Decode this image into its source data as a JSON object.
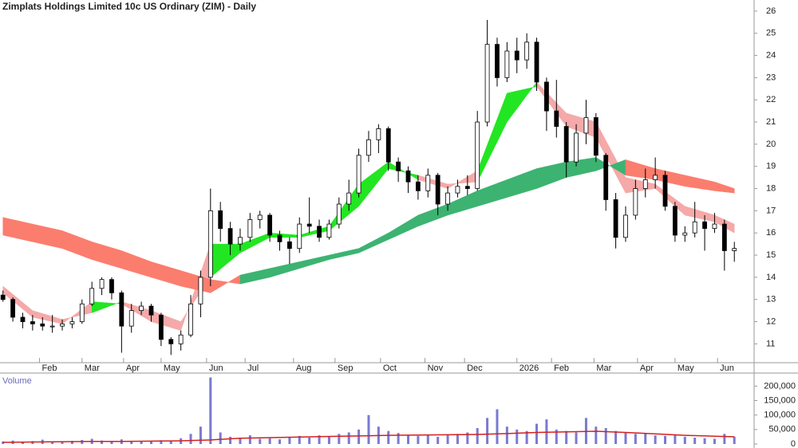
{
  "chart_data": {
    "type": "candlestick",
    "title": "Zimplats Holdings Limited 10c US Ordinary (ZIM) - Daily",
    "ylim": [
      10.15,
      26.5
    ],
    "yticks": [
      11,
      12,
      13,
      14,
      15,
      16,
      17,
      18,
      19,
      20,
      21,
      22,
      23,
      24,
      25,
      26
    ],
    "xlim": [
      -0.3,
      76
    ],
    "xticks": [
      {
        "value": 3.7,
        "label": "Feb"
      },
      {
        "value": 8,
        "label": "Mar"
      },
      {
        "value": 12.2,
        "label": "Apr"
      },
      {
        "value": 16,
        "label": "May"
      },
      {
        "value": 20.6,
        "label": "Jun"
      },
      {
        "value": 24.5,
        "label": "Jul"
      },
      {
        "value": 29.4,
        "label": "Aug"
      },
      {
        "value": 33.6,
        "label": "Sep"
      },
      {
        "value": 38.2,
        "label": "Oct"
      },
      {
        "value": 42.7,
        "label": "Nov"
      },
      {
        "value": 46.7,
        "label": "Dec"
      },
      {
        "value": 52,
        "label": "2026"
      },
      {
        "value": 55.5,
        "label": "Feb"
      },
      {
        "value": 59.8,
        "label": "Mar"
      },
      {
        "value": 64.2,
        "label": "Apr"
      },
      {
        "value": 68,
        "label": "May"
      },
      {
        "value": 72.3,
        "label": "Jun"
      }
    ],
    "ohlc": [
      [
        13.2,
        13.4,
        12.9,
        13.0
      ],
      [
        13.0,
        13.1,
        12.0,
        12.2
      ],
      [
        12.2,
        12.4,
        11.7,
        12.0
      ],
      [
        12.0,
        12.3,
        11.6,
        11.9
      ],
      [
        11.9,
        12.2,
        11.6,
        11.8
      ],
      [
        11.8,
        12.3,
        11.5,
        11.8
      ],
      [
        11.8,
        12.1,
        11.6,
        11.9
      ],
      [
        11.9,
        12.2,
        11.7,
        12.0
      ],
      [
        12.0,
        13.0,
        11.9,
        12.8
      ],
      [
        12.8,
        13.8,
        12.7,
        13.5
      ],
      [
        13.5,
        14.0,
        13.2,
        13.9
      ],
      [
        13.9,
        14.0,
        13.0,
        13.3
      ],
      [
        13.3,
        13.4,
        10.6,
        11.8
      ],
      [
        11.8,
        12.8,
        11.5,
        12.5
      ],
      [
        12.5,
        12.9,
        12.3,
        12.7
      ],
      [
        12.7,
        12.8,
        12.0,
        12.3
      ],
      [
        12.3,
        12.4,
        10.9,
        11.2
      ],
      [
        11.2,
        11.3,
        10.5,
        11.0
      ],
      [
        11.0,
        11.6,
        10.7,
        11.4
      ],
      [
        11.4,
        13.2,
        11.3,
        12.8
      ],
      [
        12.8,
        14.3,
        12.2,
        14.0
      ],
      [
        14.0,
        18.0,
        13.6,
        17.0
      ],
      [
        17.0,
        17.4,
        15.6,
        16.2
      ],
      [
        16.2,
        16.5,
        15.0,
        15.5
      ],
      [
        15.5,
        16.2,
        15.2,
        15.8
      ],
      [
        15.8,
        16.9,
        15.6,
        16.6
      ],
      [
        16.6,
        17.0,
        16.2,
        16.8
      ],
      [
        16.8,
        16.9,
        15.6,
        15.9
      ],
      [
        15.9,
        16.1,
        15.2,
        15.6
      ],
      [
        15.6,
        15.8,
        14.6,
        15.3
      ],
      [
        15.3,
        16.7,
        15.1,
        16.4
      ],
      [
        16.4,
        17.6,
        16.0,
        16.3
      ],
      [
        16.3,
        16.6,
        15.6,
        15.8
      ],
      [
        15.8,
        16.6,
        15.7,
        16.4
      ],
      [
        16.4,
        17.6,
        16.2,
        17.3
      ],
      [
        17.3,
        18.4,
        17.0,
        17.8
      ],
      [
        17.8,
        19.8,
        17.6,
        19.5
      ],
      [
        19.5,
        20.6,
        19.2,
        20.2
      ],
      [
        20.2,
        20.9,
        19.6,
        20.7
      ],
      [
        20.7,
        20.8,
        18.8,
        19.2
      ],
      [
        19.2,
        19.4,
        18.3,
        18.8
      ],
      [
        18.8,
        19.0,
        17.8,
        18.3
      ],
      [
        18.3,
        18.6,
        17.5,
        17.9
      ],
      [
        17.9,
        18.9,
        17.6,
        18.6
      ],
      [
        18.6,
        18.7,
        16.8,
        17.3
      ],
      [
        17.3,
        18.1,
        17.0,
        17.8
      ],
      [
        17.8,
        18.4,
        17.6,
        18.1
      ],
      [
        18.1,
        18.6,
        17.7,
        18.0
      ],
      [
        18.0,
        21.5,
        17.9,
        21.0
      ],
      [
        21.0,
        25.6,
        20.8,
        24.5
      ],
      [
        24.5,
        24.8,
        22.6,
        23.0
      ],
      [
        23.0,
        24.6,
        22.8,
        24.2
      ],
      [
        24.2,
        24.8,
        23.2,
        23.8
      ],
      [
        23.8,
        25.0,
        23.4,
        24.6
      ],
      [
        24.6,
        24.8,
        22.4,
        22.8
      ],
      [
        22.8,
        23.0,
        20.6,
        21.5
      ],
      [
        21.5,
        22.9,
        20.3,
        20.8
      ],
      [
        20.8,
        21.0,
        18.5,
        19.2
      ],
      [
        19.2,
        20.9,
        19.0,
        20.5
      ],
      [
        20.5,
        22.0,
        20.0,
        21.2
      ],
      [
        21.2,
        21.4,
        19.2,
        19.5
      ],
      [
        19.5,
        19.6,
        17.0,
        17.5
      ],
      [
        17.5,
        17.8,
        15.3,
        15.8
      ],
      [
        15.8,
        17.2,
        15.6,
        16.8
      ],
      [
        16.8,
        18.4,
        16.6,
        18.0
      ],
      [
        18.0,
        18.9,
        17.6,
        18.4
      ],
      [
        18.4,
        19.4,
        18.0,
        18.6
      ],
      [
        18.6,
        18.8,
        17.0,
        17.2
      ],
      [
        17.2,
        17.4,
        15.6,
        15.9
      ],
      [
        15.9,
        16.3,
        15.6,
        16.0
      ],
      [
        16.0,
        17.4,
        15.8,
        16.5
      ],
      [
        16.5,
        16.8,
        15.2,
        16.2
      ],
      [
        16.2,
        16.9,
        16.0,
        16.4
      ],
      [
        16.4,
        16.6,
        14.3,
        15.2
      ],
      [
        15.2,
        15.6,
        14.7,
        15.3
      ]
    ],
    "bands_x": [
      0,
      3,
      6,
      9,
      12,
      15,
      18,
      21,
      24,
      27,
      30,
      33,
      36,
      39,
      42,
      45,
      48,
      51,
      54,
      57,
      60,
      63,
      66,
      69,
      72,
      74
    ],
    "bands": [
      {
        "up_color": "#22e622",
        "down_color": "#f5a9a9",
        "fast": [
          13.3,
          12.2,
          11.9,
          12.9,
          12.8,
          12.0,
          11.6,
          15.5,
          15.5,
          16.0,
          15.9,
          16.3,
          18.2,
          19.2,
          18.4,
          18.0,
          18.8,
          22.3,
          22.6,
          20.8,
          20.3,
          17.8,
          18.0,
          16.8,
          16.5,
          16.0
        ],
        "slow": [
          13.6,
          12.5,
          12.1,
          12.4,
          12.9,
          12.5,
          12.0,
          14.0,
          15.1,
          15.8,
          15.8,
          16.1,
          17.2,
          18.9,
          18.6,
          18.2,
          18.3,
          21.0,
          22.8,
          21.4,
          21.0,
          18.5,
          18.2,
          17.2,
          16.8,
          16.4
        ]
      },
      {
        "up_color": "#3cb371",
        "down_color": "#fb7d6e",
        "fast": [
          15.9,
          15.6,
          15.3,
          14.8,
          14.4,
          14.0,
          13.6,
          13.3,
          14.1,
          14.4,
          14.7,
          15.0,
          15.3,
          16.0,
          16.8,
          17.3,
          17.9,
          18.4,
          18.9,
          19.2,
          19.4,
          18.6,
          18.4,
          18.1,
          17.9,
          17.8
        ],
        "slow": [
          16.7,
          16.4,
          16.1,
          15.6,
          15.2,
          14.7,
          14.3,
          13.9,
          13.7,
          14.0,
          14.4,
          14.8,
          15.1,
          15.7,
          16.3,
          16.8,
          17.2,
          17.6,
          18.0,
          18.5,
          18.8,
          19.3,
          18.9,
          18.6,
          18.3,
          18.0
        ]
      }
    ],
    "volume": {
      "label": "Volume",
      "color": "#7a7ad0",
      "avg_color": "#d42020",
      "ylim": [
        0,
        245000
      ],
      "yticks": [
        0,
        {
          "value": 50000,
          "label": "50,000"
        },
        {
          "value": 100000,
          "label": "100,000"
        },
        {
          "value": 150000,
          "label": "150,000"
        },
        {
          "value": 200000,
          "label": "200,000"
        }
      ],
      "values": [
        9000,
        12000,
        8000,
        10000,
        15000,
        7000,
        9000,
        11000,
        14000,
        18000,
        12000,
        9000,
        16000,
        8000,
        10000,
        9000,
        13000,
        12000,
        20000,
        35000,
        60000,
        230000,
        40000,
        25000,
        22000,
        30000,
        18000,
        20000,
        16000,
        25000,
        28000,
        22000,
        30000,
        26000,
        35000,
        40000,
        50000,
        100000,
        60000,
        45000,
        38000,
        30000,
        28000,
        32000,
        25000,
        30000,
        35000,
        40000,
        55000,
        90000,
        120000,
        60000,
        50000,
        45000,
        70000,
        85000,
        50000,
        45000,
        40000,
        90000,
        60000,
        55000,
        45000,
        40000,
        35000,
        38000,
        30000,
        28000,
        32000,
        25000,
        22000,
        20000,
        18000,
        35000,
        25000
      ],
      "avg": [
        6000,
        7000,
        8000,
        9000,
        9000,
        10000,
        11000,
        14000,
        20000,
        22000,
        24000,
        26000,
        28000,
        30000,
        31000,
        32000,
        33000,
        36000,
        40000,
        42000,
        44000,
        40000,
        35000,
        30000,
        27000,
        25000
      ]
    }
  }
}
